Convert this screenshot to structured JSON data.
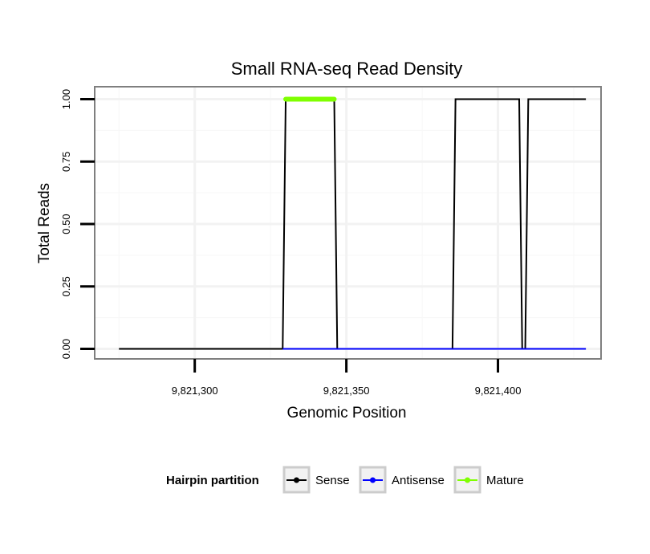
{
  "chart_data": {
    "type": "line",
    "title": "Small RNA-seq Read Density",
    "xlabel": "Genomic Position",
    "ylabel": "Total Reads",
    "xlim": [
      9821267,
      9821434
    ],
    "ylim": [
      -0.04,
      1.05
    ],
    "x_ticks": [
      9821300,
      9821350,
      9821400
    ],
    "x_tick_labels": [
      "9,821,300",
      "9,821,350",
      "9,821,400"
    ],
    "y_ticks": [
      0,
      0.25,
      0.5,
      0.75,
      1.0
    ],
    "y_tick_labels": [
      "0.00",
      "0.25",
      "0.50",
      "0.75",
      "1.00"
    ],
    "grid": true,
    "legend": {
      "title": "Hairpin partition",
      "position": "bottom",
      "entries": [
        {
          "name": "Sense",
          "color": "#000000"
        },
        {
          "name": "Antisense",
          "color": "#0000ff"
        },
        {
          "name": "Mature",
          "color": "#7fff00"
        }
      ]
    },
    "series": [
      {
        "name": "Sense",
        "color": "#000000",
        "x": [
          9821275,
          9821329,
          9821330,
          9821346,
          9821347,
          9821385,
          9821386,
          9821407,
          9821408,
          9821409,
          9821410,
          9821429
        ],
        "y": [
          0,
          0,
          1,
          1,
          0,
          0,
          1,
          1,
          0,
          0,
          1,
          1
        ]
      },
      {
        "name": "Antisense",
        "color": "#0000ff",
        "x": [
          9821329,
          9821347,
          9821385,
          9821429
        ],
        "y": [
          0,
          0,
          0,
          0
        ]
      },
      {
        "name": "Mature",
        "color": "#7fff00",
        "x": [
          9821330,
          9821346
        ],
        "y": [
          1,
          1
        ]
      }
    ]
  }
}
